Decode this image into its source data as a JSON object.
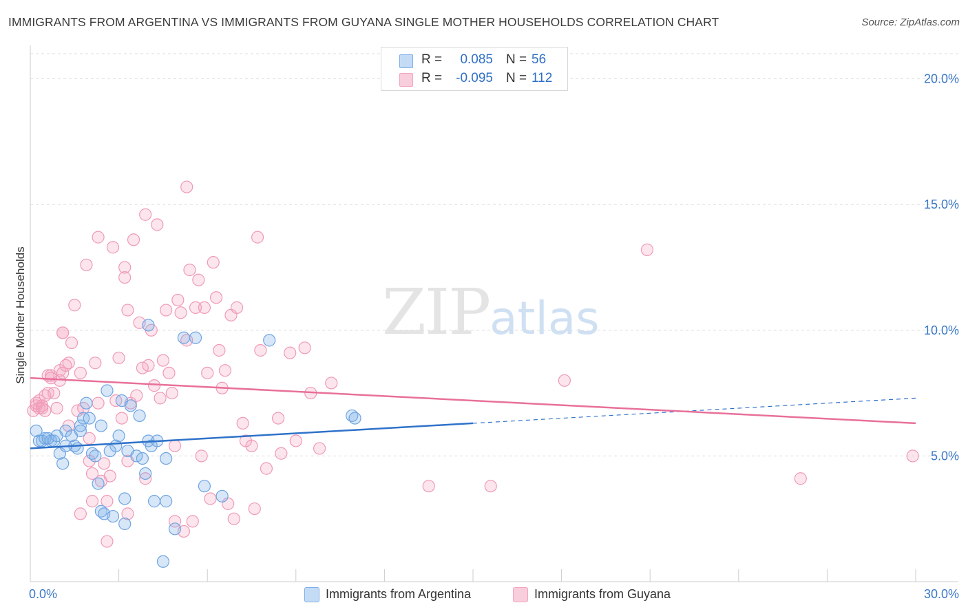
{
  "title": "IMMIGRANTS FROM ARGENTINA VS IMMIGRANTS FROM GUYANA SINGLE MOTHER HOUSEHOLDS CORRELATION CHART",
  "source": "Source: ZipAtlas.com",
  "watermark": {
    "zip": "ZIP",
    "atlas": "atlas"
  },
  "legend": {
    "rows": [
      {
        "r_label": "R =",
        "r_value": "0.085",
        "n_label": "N =",
        "n_value": "56"
      },
      {
        "r_label": "R =",
        "r_value": "-0.095",
        "n_label": "N =",
        "n_value": "112"
      }
    ]
  },
  "colors": {
    "argentina": "#7baee8",
    "guyana": "#f3a3bd",
    "argentina_line": "#2f72c9",
    "guyana_line": "#e8709a",
    "axis_text": "#3a78c8"
  },
  "chart_data": {
    "type": "scatter",
    "xlabel": "",
    "ylabel": "Single Mother Households",
    "xlim": [
      0,
      30
    ],
    "ylim": [
      0,
      21
    ],
    "x_tick_labels": [
      "0.0%",
      "30.0%"
    ],
    "y_ticks": [
      5,
      10,
      15,
      20
    ],
    "y_tick_labels": [
      "5.0%",
      "10.0%",
      "15.0%",
      "20.0%"
    ],
    "grid": true,
    "legend_position": "bottom",
    "series": [
      {
        "name": "Immigrants from Argentina",
        "r": 0.085,
        "n": 56,
        "trend": {
          "x0": 0,
          "y0": 5.3,
          "x1": 15,
          "y1": 6.3,
          "x_dash_end": 30,
          "y_dash_end": 7.3
        },
        "points": [
          [
            0.2,
            6.0
          ],
          [
            0.3,
            5.6
          ],
          [
            0.4,
            5.6
          ],
          [
            0.5,
            5.7
          ],
          [
            0.6,
            5.7
          ],
          [
            0.7,
            5.6
          ],
          [
            0.8,
            5.6
          ],
          [
            1.0,
            5.1
          ],
          [
            1.1,
            4.7
          ],
          [
            1.2,
            6.0
          ],
          [
            1.4,
            5.8
          ],
          [
            1.5,
            5.4
          ],
          [
            1.6,
            5.3
          ],
          [
            1.7,
            6.0
          ],
          [
            1.7,
            6.2
          ],
          [
            1.8,
            6.5
          ],
          [
            1.9,
            7.1
          ],
          [
            2.0,
            6.5
          ],
          [
            2.1,
            5.1
          ],
          [
            2.2,
            5.0
          ],
          [
            2.3,
            3.9
          ],
          [
            2.4,
            6.2
          ],
          [
            2.4,
            2.8
          ],
          [
            2.5,
            2.7
          ],
          [
            2.6,
            7.6
          ],
          [
            2.8,
            2.6
          ],
          [
            2.9,
            5.4
          ],
          [
            3.0,
            5.8
          ],
          [
            3.1,
            7.2
          ],
          [
            3.2,
            3.3
          ],
          [
            3.2,
            2.3
          ],
          [
            3.3,
            5.2
          ],
          [
            3.4,
            7.0
          ],
          [
            3.6,
            5.0
          ],
          [
            3.7,
            6.6
          ],
          [
            3.8,
            4.9
          ],
          [
            3.9,
            4.3
          ],
          [
            4.0,
            10.2
          ],
          [
            4.0,
            5.6
          ],
          [
            4.1,
            5.4
          ],
          [
            4.2,
            3.2
          ],
          [
            4.3,
            5.6
          ],
          [
            4.5,
            0.8
          ],
          [
            4.6,
            3.2
          ],
          [
            4.6,
            4.9
          ],
          [
            4.9,
            2.1
          ],
          [
            5.2,
            9.7
          ],
          [
            5.6,
            9.7
          ],
          [
            5.9,
            3.8
          ],
          [
            6.5,
            3.4
          ],
          [
            8.1,
            9.6
          ],
          [
            10.9,
            6.6
          ],
          [
            11.0,
            6.5
          ],
          [
            1.2,
            5.4
          ],
          [
            2.7,
            5.2
          ],
          [
            0.9,
            5.8
          ]
        ]
      },
      {
        "name": "Immigrants from Guyana",
        "r": -0.095,
        "n": 112,
        "trend": {
          "x0": 0,
          "y0": 8.1,
          "x1": 30,
          "y1": 6.3
        },
        "points": [
          [
            0.1,
            6.8
          ],
          [
            0.2,
            7.0
          ],
          [
            0.3,
            7.2
          ],
          [
            0.3,
            6.9
          ],
          [
            0.4,
            7.0
          ],
          [
            0.5,
            7.4
          ],
          [
            0.5,
            6.8
          ],
          [
            0.6,
            7.5
          ],
          [
            0.6,
            8.2
          ],
          [
            0.7,
            8.2
          ],
          [
            0.7,
            8.1
          ],
          [
            0.8,
            7.5
          ],
          [
            0.9,
            6.9
          ],
          [
            1.0,
            8.0
          ],
          [
            1.0,
            8.4
          ],
          [
            1.1,
            9.9
          ],
          [
            1.1,
            9.9
          ],
          [
            1.2,
            8.6
          ],
          [
            1.3,
            8.7
          ],
          [
            1.3,
            6.2
          ],
          [
            1.4,
            9.5
          ],
          [
            1.5,
            11.0
          ],
          [
            1.6,
            6.8
          ],
          [
            1.7,
            8.3
          ],
          [
            1.8,
            6.9
          ],
          [
            1.9,
            12.6
          ],
          [
            2.0,
            5.7
          ],
          [
            2.0,
            4.8
          ],
          [
            2.1,
            4.3
          ],
          [
            2.2,
            8.7
          ],
          [
            2.3,
            13.7
          ],
          [
            2.3,
            7.1
          ],
          [
            2.4,
            4.0
          ],
          [
            2.5,
            4.7
          ],
          [
            2.6,
            3.2
          ],
          [
            2.6,
            1.6
          ],
          [
            2.7,
            4.2
          ],
          [
            2.8,
            13.3
          ],
          [
            2.9,
            7.2
          ],
          [
            3.0,
            8.9
          ],
          [
            3.1,
            6.5
          ],
          [
            3.2,
            12.1
          ],
          [
            3.2,
            12.5
          ],
          [
            3.3,
            10.8
          ],
          [
            3.3,
            2.7
          ],
          [
            3.4,
            7.1
          ],
          [
            3.5,
            13.6
          ],
          [
            3.6,
            7.4
          ],
          [
            3.7,
            10.3
          ],
          [
            3.8,
            8.5
          ],
          [
            3.9,
            4.1
          ],
          [
            3.9,
            14.6
          ],
          [
            4.0,
            8.6
          ],
          [
            4.1,
            10.0
          ],
          [
            4.2,
            7.8
          ],
          [
            4.3,
            14.2
          ],
          [
            4.4,
            7.3
          ],
          [
            4.5,
            8.8
          ],
          [
            4.6,
            10.8
          ],
          [
            4.7,
            8.3
          ],
          [
            4.8,
            7.5
          ],
          [
            4.9,
            5.4
          ],
          [
            5.0,
            11.2
          ],
          [
            5.1,
            10.7
          ],
          [
            5.2,
            2.0
          ],
          [
            5.3,
            9.6
          ],
          [
            5.3,
            15.7
          ],
          [
            5.4,
            12.4
          ],
          [
            5.5,
            2.4
          ],
          [
            5.6,
            10.9
          ],
          [
            5.7,
            12.0
          ],
          [
            5.8,
            5.0
          ],
          [
            5.9,
            10.9
          ],
          [
            6.0,
            8.3
          ],
          [
            6.1,
            3.3
          ],
          [
            6.2,
            12.7
          ],
          [
            6.3,
            11.3
          ],
          [
            6.4,
            9.2
          ],
          [
            6.5,
            7.7
          ],
          [
            6.6,
            8.4
          ],
          [
            6.8,
            10.6
          ],
          [
            6.9,
            2.5
          ],
          [
            7.0,
            10.9
          ],
          [
            7.2,
            6.3
          ],
          [
            7.3,
            5.6
          ],
          [
            7.5,
            5.4
          ],
          [
            7.6,
            2.9
          ],
          [
            7.7,
            13.7
          ],
          [
            7.8,
            9.2
          ],
          [
            8.0,
            4.5
          ],
          [
            8.4,
            6.5
          ],
          [
            8.5,
            5.1
          ],
          [
            8.8,
            9.1
          ],
          [
            9.0,
            5.6
          ],
          [
            9.3,
            9.3
          ],
          [
            9.5,
            7.5
          ],
          [
            9.8,
            5.3
          ],
          [
            10.2,
            7.9
          ],
          [
            13.5,
            3.8
          ],
          [
            15.6,
            3.8
          ],
          [
            18.1,
            8.0
          ],
          [
            20.9,
            13.2
          ],
          [
            26.1,
            4.1
          ],
          [
            29.9,
            5.0
          ],
          [
            0.2,
            7.1
          ],
          [
            0.4,
            6.9
          ],
          [
            1.1,
            8.3
          ],
          [
            2.1,
            3.2
          ],
          [
            3.3,
            4.8
          ],
          [
            4.9,
            2.4
          ],
          [
            6.7,
            3.1
          ],
          [
            1.7,
            2.7
          ]
        ]
      }
    ]
  },
  "bottom_legend": [
    "Immigrants from Argentina",
    "Immigrants from Guyana"
  ]
}
